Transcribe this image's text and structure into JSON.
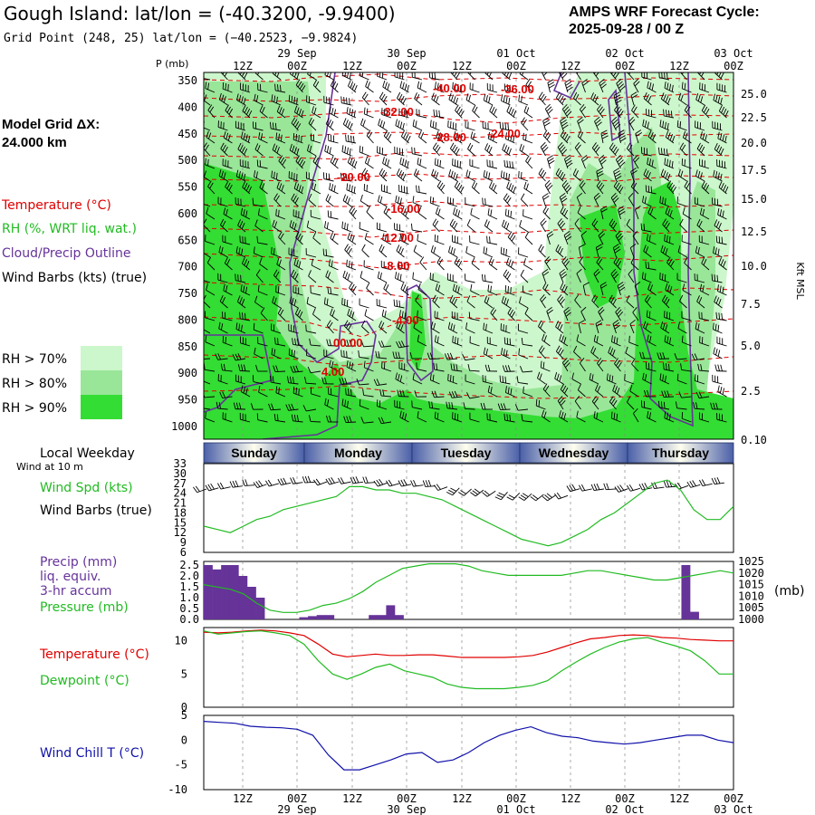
{
  "header": {
    "title": "Gough Island:  lat/lon = (-40.3200, -9.9400)",
    "grid_point": "Grid Point (248, 25) lat/lon = (−40.2523, −9.9824)",
    "cycle_label": "AMPS WRF Forecast Cycle:",
    "cycle_value": "2025-09-28 / 00  Z"
  },
  "legend": {
    "model_grid": "Model Grid ΔX:",
    "model_grid_value": " 24.000 km",
    "temperature": "Temperature (°C)",
    "rh": "RH (%, WRT liq. wat.)",
    "cloud": "Cloud/Precip Outline",
    "wind": "Wind Barbs (kts) (true)",
    "rh70": "RH > 70%",
    "rh80": "RH > 80%",
    "rh90": "RH > 90%"
  },
  "colors": {
    "rh70": "#ccf7cc",
    "rh80": "#99e699",
    "rh90": "#33dd33",
    "temperature": "#e00000",
    "cloud": "#663399",
    "rh_line": "#22bb22",
    "windchill": "#1111aa",
    "precip": "#663399"
  },
  "time_axis": {
    "top_dates": [
      "29 Sep",
      "30 Sep",
      "01 Oct",
      "02 Oct",
      "03 Oct"
    ],
    "hour_labels": [
      "12Z",
      "00Z",
      "12Z",
      "00Z",
      "12Z",
      "00Z",
      "12Z",
      "00Z",
      "12Z",
      "00Z"
    ],
    "bottom_dates": [
      "29 Sep",
      "30 Sep",
      "01 Oct",
      "02 Oct",
      "03 Oct"
    ]
  },
  "chart_data": [
    {
      "type": "heatmap",
      "title": "Upper-air cross section",
      "ylabel_left": "P (mb)",
      "ylabel_right": "Kft MSL",
      "pressure_ticks": [
        "350",
        "400",
        "450",
        "500",
        "550",
        "600",
        "650",
        "700",
        "750",
        "800",
        "850",
        "900",
        "950",
        "1000"
      ],
      "height_ticks": [
        "25.0",
        "22.5",
        "20.0",
        "17.5",
        "15.0",
        "12.5",
        "10.0",
        "7.5",
        "5.0",
        "2.5",
        "0.10"
      ],
      "temperature_labels": [
        "-40.00",
        "-36.00",
        "-32.00",
        "-28.00",
        "-24.00",
        "-20.00",
        "-16.00",
        "-12.00",
        "-8.00",
        "-4.00",
        "00.00",
        "4.00"
      ]
    },
    {
      "type": "line",
      "title": "Local Weekday",
      "days": [
        "Sunday",
        "Monday",
        "Tuesday",
        "Wednesday",
        "Thursday"
      ],
      "wind_note": "Wind at 10 m",
      "labels": [
        "Wind Spd (kts)",
        "Wind Barbs (true)"
      ],
      "y_ticks": [
        "33",
        "30",
        "27",
        "24",
        "21",
        "18",
        "15",
        "12",
        "9",
        "6"
      ],
      "ylim": [
        6,
        33
      ],
      "wind_speed": [
        14,
        13,
        12,
        14,
        16,
        17,
        19,
        20,
        21,
        22,
        23,
        26,
        26,
        25,
        25,
        24,
        24,
        23,
        22,
        20,
        18,
        16,
        14,
        12,
        10,
        9,
        8,
        9,
        11,
        13,
        16,
        18,
        21,
        24,
        27,
        28,
        25,
        19,
        16,
        16,
        20
      ]
    },
    {
      "type": "bar",
      "labels": [
        "Precip (mm)",
        "liq. equiv.",
        "3-hr accum",
        "Pressure (mb)"
      ],
      "y_ticks_left": [
        "2.5",
        "2.0",
        "1.5",
        "1.0",
        "0.5",
        "0.0"
      ],
      "y_ticks_right": [
        "1025",
        "1020",
        "1015",
        "1010",
        "1005",
        "1000"
      ],
      "right_unit": "(mb)",
      "precip_mm": [
        2.5,
        2.3,
        2.5,
        2.5,
        2.0,
        1.5,
        1.0,
        0,
        0,
        0,
        0,
        0.1,
        0.15,
        0.2,
        0.2,
        0,
        0,
        0,
        0,
        0.2,
        0.2,
        0.65,
        0.2,
        0,
        0,
        0,
        0,
        0,
        0,
        0,
        0,
        0,
        0,
        0,
        0,
        0,
        0,
        0,
        0,
        0,
        0,
        0,
        0,
        0,
        0,
        0,
        0,
        0,
        0,
        0,
        0,
        0,
        0,
        0,
        0,
        2.5,
        0.35,
        0,
        0,
        0,
        0
      ],
      "pressure_mb": [
        1015,
        1014,
        1013,
        1011,
        1007,
        1004,
        1003,
        1003,
        1004,
        1006,
        1007,
        1009,
        1012,
        1016,
        1019,
        1022,
        1023,
        1024,
        1024,
        1024,
        1023,
        1021,
        1020,
        1019,
        1019,
        1019,
        1019,
        1019,
        1020,
        1021,
        1021,
        1020,
        1019,
        1018,
        1017,
        1017,
        1018,
        1019,
        1020,
        1021,
        1020
      ]
    },
    {
      "type": "line",
      "labels": [
        "Temperature (°C)",
        "Dewpoint (°C)"
      ],
      "y_ticks": [
        "10",
        "5",
        "0"
      ],
      "ylim": [
        0,
        12
      ],
      "temperature": [
        11.3,
        11.2,
        11.3,
        11.5,
        11.6,
        11.5,
        11.2,
        10.8,
        9.5,
        8.0,
        7.6,
        7.8,
        8.0,
        7.8,
        7.8,
        7.9,
        7.9,
        7.7,
        7.5,
        7.5,
        7.5,
        7.5,
        7.6,
        7.8,
        8.3,
        9.0,
        9.7,
        10.3,
        10.5,
        10.8,
        10.9,
        10.8,
        10.5,
        10.4,
        10.2,
        10.1,
        10.0,
        10.0
      ],
      "dewpoint": [
        11.5,
        11.0,
        11.2,
        11.4,
        11.5,
        11.2,
        10.8,
        9.5,
        7.0,
        5.0,
        4.2,
        5.0,
        6.0,
        6.5,
        5.5,
        5.0,
        4.5,
        3.5,
        3.0,
        2.8,
        2.8,
        2.8,
        3.0,
        3.3,
        4.0,
        5.5,
        6.8,
        8.0,
        9.0,
        9.8,
        10.3,
        10.5,
        9.8,
        9.2,
        8.5,
        7.0,
        5.0,
        5.0
      ]
    },
    {
      "type": "line",
      "labels": [
        "Wind Chill T (°C)"
      ],
      "y_ticks": [
        "5",
        "0",
        "-5",
        "-10"
      ],
      "ylim": [
        -10,
        5
      ],
      "windchill": [
        3.8,
        3.6,
        3.4,
        2.8,
        2.6,
        2.5,
        2.2,
        1.0,
        -3.0,
        -6.0,
        -6.0,
        -5.0,
        -4.0,
        -2.8,
        -2.5,
        -4.5,
        -4.0,
        -2.5,
        -0.5,
        1.0,
        2.0,
        2.7,
        1.5,
        0.8,
        0.5,
        -0.2,
        -0.5,
        -0.8,
        -0.5,
        0.0,
        0.5,
        1.0,
        1.0,
        0.0,
        -0.5
      ]
    }
  ]
}
